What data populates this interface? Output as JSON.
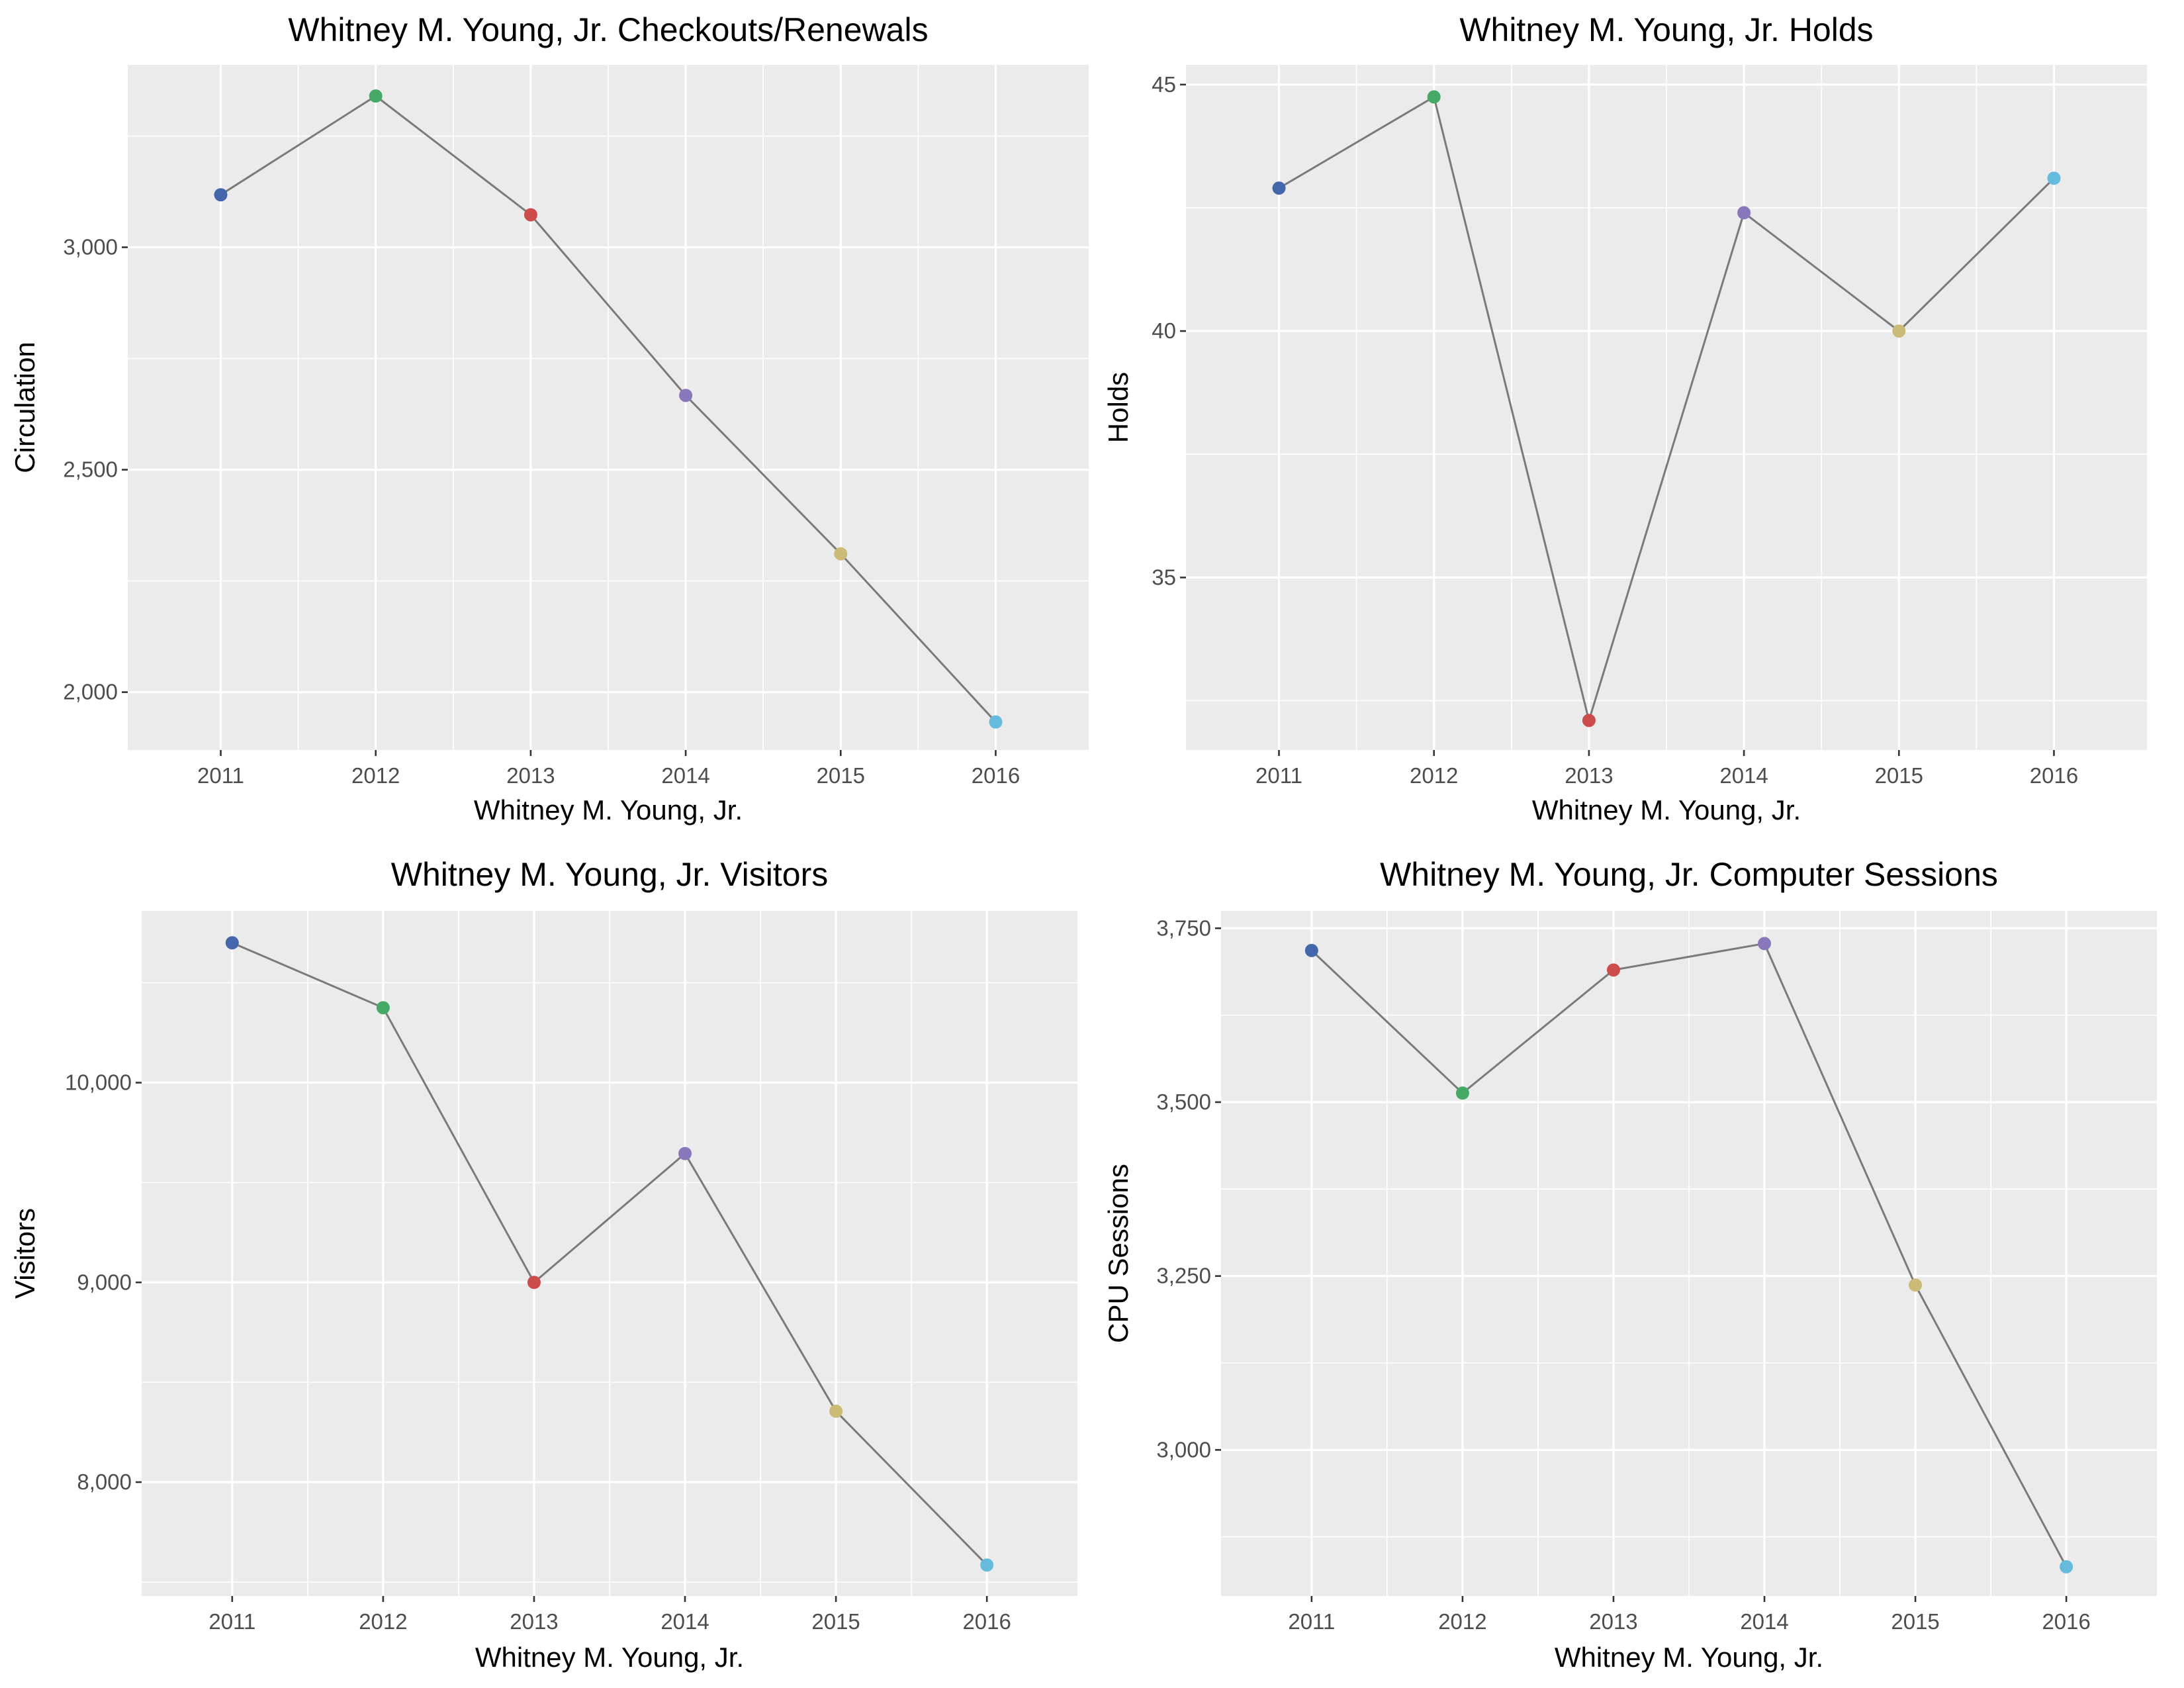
{
  "figure": {
    "layout": "2x2 grid of line charts",
    "line_color": "#7a7a7a",
    "point_colors": [
      "#4466aa",
      "#44aa66",
      "#cc4c4c",
      "#8877bb",
      "#ccbb77",
      "#66bbdd"
    ]
  },
  "chart_data": [
    {
      "type": "line",
      "title": "Whitney M. Young, Jr. Checkouts/Renewals",
      "xlabel": "Whitney M. Young, Jr.",
      "ylabel": "Circulation",
      "x": [
        "2011",
        "2012",
        "2013",
        "2014",
        "2015",
        "2016"
      ],
      "values": [
        3118,
        3340,
        3073,
        2667,
        2311,
        1933
      ],
      "ylim": [
        1870,
        3410
      ],
      "yticks": [
        2000,
        2500,
        3000
      ],
      "ytick_labels": [
        "2,000",
        "2,500",
        "3,000"
      ],
      "grid": true,
      "legend": "none"
    },
    {
      "type": "line",
      "title": "Whitney M. Young, Jr. Holds",
      "xlabel": "Whitney M. Young, Jr.",
      "ylabel": "Holds",
      "x": [
        "2011",
        "2012",
        "2013",
        "2014",
        "2015",
        "2016"
      ],
      "values": [
        42.9,
        44.75,
        32.1,
        42.4,
        40.0,
        43.1
      ],
      "ylim": [
        31.5,
        45.4
      ],
      "yticks": [
        35,
        40,
        45
      ],
      "ytick_labels": [
        "35",
        "40",
        "45"
      ],
      "grid": true,
      "legend": "none"
    },
    {
      "type": "line",
      "title": "Whitney M. Young, Jr. Visitors",
      "xlabel": "Whitney M. Young, Jr.",
      "ylabel": "Visitors",
      "x": [
        "2011",
        "2012",
        "2013",
        "2014",
        "2015",
        "2016"
      ],
      "values": [
        10700,
        10375,
        9000,
        9645,
        8355,
        7585
      ],
      "ylim": [
        7430,
        10860
      ],
      "yticks": [
        8000,
        9000,
        10000
      ],
      "ytick_labels": [
        "8,000",
        "9,000",
        "10,000"
      ],
      "grid": true,
      "legend": "none"
    },
    {
      "type": "line",
      "title": "Whitney M. Young, Jr. Computer Sessions",
      "xlabel": "Whitney M. Young, Jr.",
      "ylabel": "CPU Sessions",
      "x": [
        "2011",
        "2012",
        "2013",
        "2014",
        "2015",
        "2016"
      ],
      "values": [
        3718,
        3513,
        3690,
        3728,
        3237,
        2832
      ],
      "ylim": [
        2790,
        3775
      ],
      "yticks": [
        3000,
        3250,
        3500,
        3750
      ],
      "ytick_labels": [
        "3,000",
        "3,250",
        "3,500",
        "3,750"
      ],
      "grid": true,
      "legend": "none"
    }
  ]
}
